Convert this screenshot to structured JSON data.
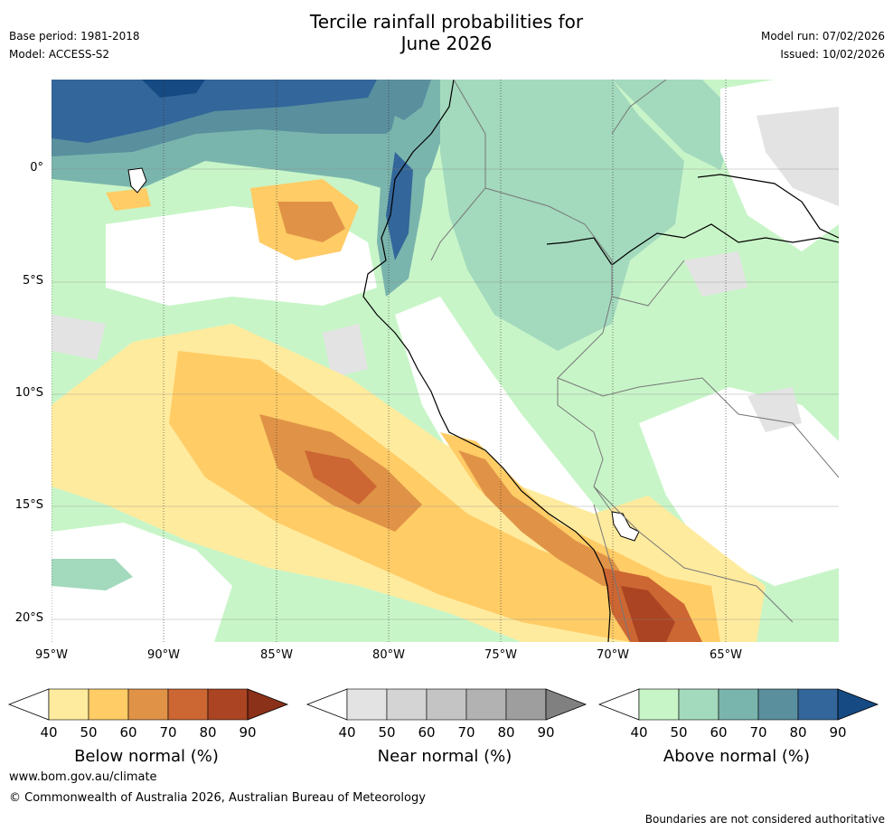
{
  "title_line1": "Tercile rainfall probabilities for",
  "title_line2": "June 2026",
  "meta": {
    "base_period": "Base period: 1981-2018",
    "model": "Model: ACCESS-S2",
    "model_run": "Model run: 07/02/2026",
    "issued": "Issued: 10/02/2026"
  },
  "map": {
    "lat_labels": [
      "0°",
      "5°S",
      "10°S",
      "15°S",
      "20°S"
    ],
    "lon_labels": [
      "95°W",
      "90°W",
      "85°W",
      "80°W",
      "75°W",
      "70°W",
      "65°W"
    ]
  },
  "colorbars": {
    "below": {
      "title": "Below normal (%)",
      "ticks": [
        "40",
        "50",
        "60",
        "70",
        "80",
        "90"
      ],
      "colors": [
        "#ffffff",
        "#ffeb9e",
        "#ffcc66",
        "#e09347",
        "#cc6633",
        "#aa4422",
        "#8b3019"
      ]
    },
    "near": {
      "title": "Near normal (%)",
      "ticks": [
        "40",
        "50",
        "60",
        "70",
        "80",
        "90"
      ],
      "colors": [
        "#ffffff",
        "#e3e3e3",
        "#d4d4d4",
        "#c4c4c4",
        "#b2b2b2",
        "#9e9e9e",
        "#808080"
      ]
    },
    "above": {
      "title": "Above normal (%)",
      "ticks": [
        "40",
        "50",
        "60",
        "70",
        "80",
        "90"
      ],
      "colors": [
        "#ffffff",
        "#c8f5c8",
        "#a3d9bd",
        "#7ab5ad",
        "#5a8f9e",
        "#33669a",
        "#154a82"
      ]
    }
  },
  "footer": {
    "url": "www.bom.gov.au/climate",
    "copyright": "© Commonwealth of Australia 2026, Australian Bureau of Meteorology",
    "disclaimer": "Boundaries are not considered authoritative"
  }
}
